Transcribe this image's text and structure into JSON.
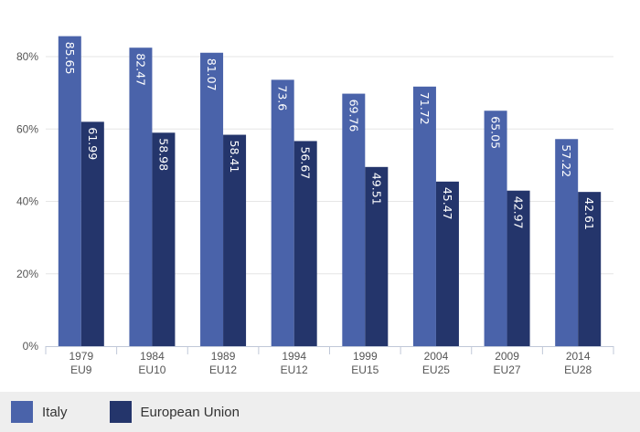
{
  "chart_data": {
    "type": "bar",
    "categories": [
      [
        "1979",
        "EU9"
      ],
      [
        "1984",
        "EU10"
      ],
      [
        "1989",
        "EU12"
      ],
      [
        "1994",
        "EU12"
      ],
      [
        "1999",
        "EU15"
      ],
      [
        "2004",
        "EU25"
      ],
      [
        "2009",
        "EU27"
      ],
      [
        "2014",
        "EU28"
      ]
    ],
    "series": [
      {
        "name": "Italy",
        "color": "#4a63aa",
        "values": [
          85.65,
          82.47,
          81.07,
          73.6,
          69.76,
          71.72,
          65.05,
          57.22
        ],
        "labels": [
          "85.65",
          "82.47",
          "81.07",
          "73.6",
          "69.76",
          "71.72",
          "65.05",
          "57.22"
        ]
      },
      {
        "name": "European Union",
        "color": "#24356b",
        "values": [
          61.99,
          58.98,
          58.41,
          56.67,
          49.51,
          45.47,
          42.97,
          42.61
        ],
        "labels": [
          "61.99",
          "58.98",
          "58.41",
          "56.67",
          "49.51",
          "45.47",
          "42.97",
          "42.61"
        ]
      }
    ],
    "yticks": [
      0,
      20,
      40,
      60,
      80
    ],
    "ytick_labels": [
      "0%",
      "20%",
      "40%",
      "60%",
      "80%"
    ],
    "ylim": [
      0,
      90
    ],
    "grid": true,
    "legend_position": "bottom-left"
  }
}
